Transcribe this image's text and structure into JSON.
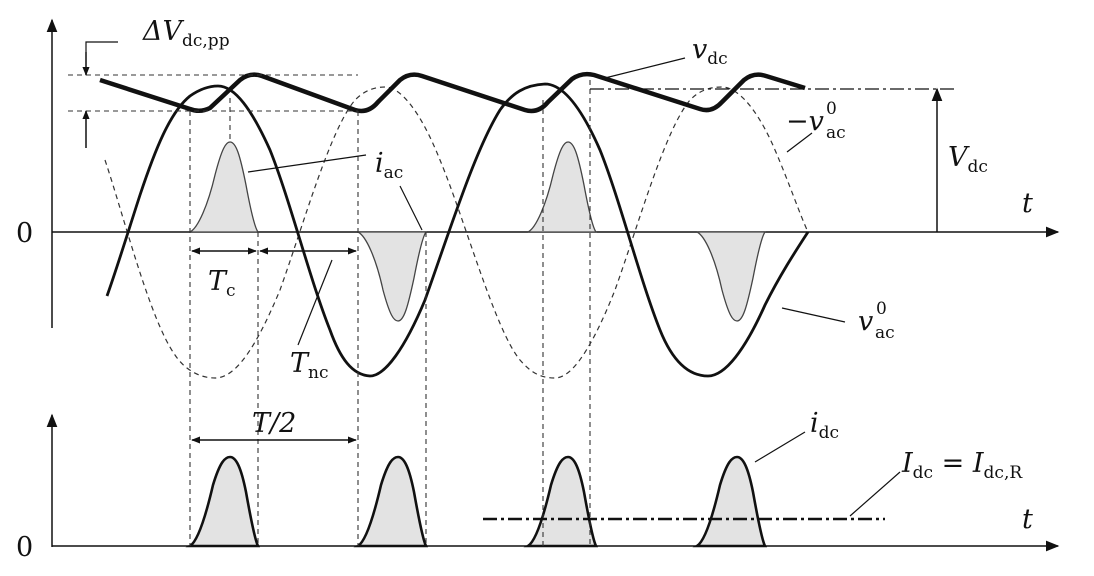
{
  "labels": {
    "delta_v_sym": "ΔV",
    "delta_v_sub": "dc,pp",
    "vdc_sym": "v",
    "vdc_sub": "dc",
    "neg_vac_sym": "−v",
    "neg_vac_sup": "0",
    "neg_vac_sub": "ac",
    "Vdc_sym": "V",
    "Vdc_sub": "dc",
    "iac_sym": "i",
    "iac_sub": "ac",
    "t_top": "t",
    "zero_top": "0",
    "Tc_sym": "T",
    "Tc_sub": "c",
    "Tnc_sym": "T",
    "Tnc_sub": "nc",
    "vac_sym": "v",
    "vac_sup": "0",
    "vac_sub": "ac",
    "T2": "T/2",
    "idc_sym": "i",
    "idc_sub": "dc",
    "Idc_sym": "I",
    "Idc_sub": "dc",
    "Idc_eq": " = ",
    "IdcR_sym": "I",
    "IdcR_sub": "dc,R",
    "t_bottom": "t",
    "zero_bottom": "0"
  },
  "colors": {
    "stroke": "#111111",
    "pulse_fill": "#e3e3e3"
  }
}
